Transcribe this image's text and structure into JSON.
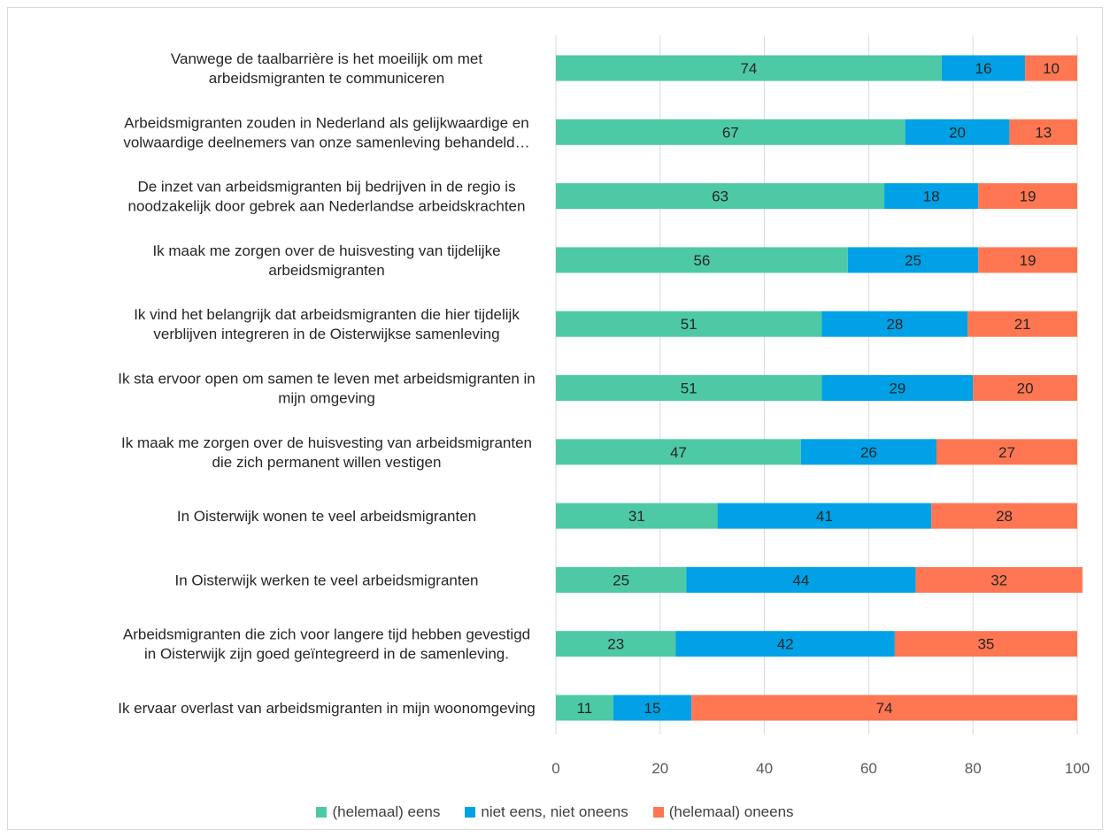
{
  "chart_data": {
    "type": "bar",
    "orientation": "horizontal",
    "stacked": true,
    "title": "",
    "xlabel": "",
    "ylabel": "",
    "xlim": [
      0,
      100
    ],
    "x_ticks": [
      "0",
      "20",
      "40",
      "60",
      "80",
      "100"
    ],
    "grid": true,
    "legend_position": "bottom",
    "categories": [
      [
        "Vanwege de taalbarrière is het moeilijk om met",
        "arbeidsmigranten te communiceren"
      ],
      [
        "Arbeidsmigranten zouden in Nederland als gelijkwaardige en",
        "volwaardige deelnemers van onze samenleving behandeld…"
      ],
      [
        "De inzet van arbeidsmigranten bij bedrijven in de regio is",
        "noodzakelijk door gebrek aan Nederlandse arbeidskrachten"
      ],
      [
        "Ik maak me zorgen over de huisvesting van tijdelijke",
        "arbeidsmigranten"
      ],
      [
        "Ik vind het belangrijk dat arbeidsmigranten die hier tijdelijk",
        "verblijven integreren in de Oisterwijkse samenleving"
      ],
      [
        "Ik sta ervoor open om samen te leven met arbeidsmigranten in",
        "mijn omgeving"
      ],
      [
        "Ik maak me zorgen over de huisvesting van arbeidsmigranten",
        "die zich permanent willen vestigen"
      ],
      [
        "In Oisterwijk wonen te veel arbeidsmigranten"
      ],
      [
        "In Oisterwijk werken te veel arbeidsmigranten"
      ],
      [
        "Arbeidsmigranten die zich voor langere tijd hebben gevestigd",
        "in Oisterwijk zijn goed geïntegreerd in de samenleving."
      ],
      [
        "Ik ervaar overlast van arbeidsmigranten in mijn woonomgeving"
      ]
    ],
    "series": [
      {
        "name": "(helemaal) eens",
        "color": "#4DC9A6",
        "values": [
          74,
          67,
          63,
          56,
          51,
          51,
          47,
          31,
          25,
          23,
          11
        ]
      },
      {
        "name": "niet eens, niet oneens",
        "color": "#00A1E6",
        "values": [
          16,
          20,
          18,
          25,
          28,
          29,
          26,
          41,
          44,
          42,
          15
        ]
      },
      {
        "name": "(helemaal) oneens",
        "color": "#FF7652",
        "values": [
          10,
          13,
          19,
          19,
          21,
          20,
          27,
          28,
          32,
          35,
          74
        ]
      }
    ]
  }
}
